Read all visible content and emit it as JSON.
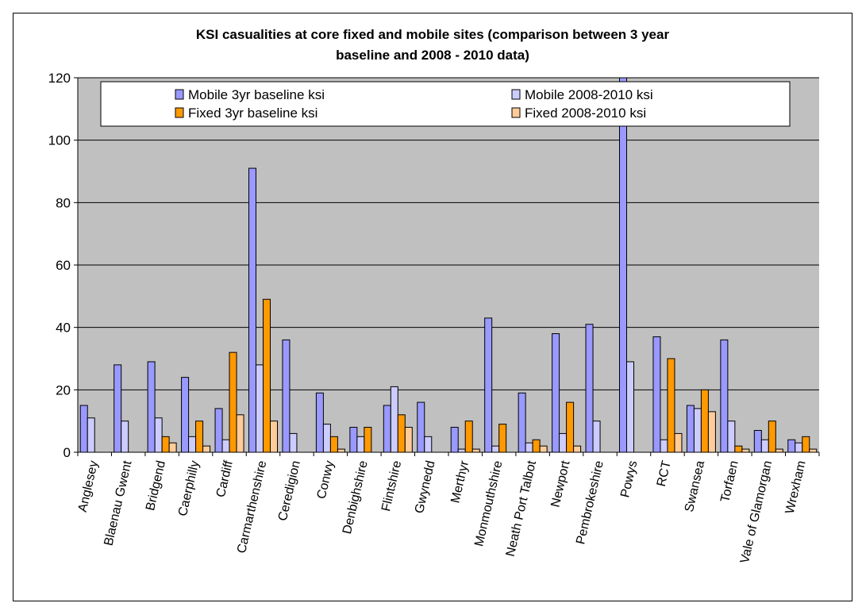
{
  "chart_data": {
    "type": "bar",
    "title_lines": [
      "KSI casualities at core fixed and mobile sites (comparison between 3 year",
      "baseline and 2008 - 2010 data)"
    ],
    "xlabel": "",
    "ylabel": "",
    "ylim": [
      0,
      120
    ],
    "yticks": [
      0,
      20,
      40,
      60,
      80,
      100,
      120
    ],
    "grid": true,
    "legend_position": "top",
    "plot_background": "#c0c0c0",
    "categories": [
      "Anglesey",
      "Blaenau Gwent",
      "Bridgend",
      "Caerphilly",
      "Cardiff",
      "Carmarthenshire",
      "Ceredigion",
      "Conwy",
      "Denbighshire",
      "Flintshire",
      "Gwynedd",
      "Merthyr",
      "Monmouthshire",
      "Neath Port Talbot",
      "Newport",
      "Pembrokeshire",
      "Powys",
      "RCT",
      "Swansea",
      "Torfaen",
      "Vale of Glamorgan",
      "Wrexham"
    ],
    "series": [
      {
        "name": "Mobile 3yr baseline ksi",
        "color": "#9999ff",
        "values": [
          15,
          28,
          29,
          24,
          14,
          91,
          36,
          19,
          8,
          15,
          16,
          8,
          43,
          19,
          38,
          41,
          120,
          37,
          15,
          36,
          7,
          4
        ]
      },
      {
        "name": "Mobile 2008-2010 ksi",
        "color": "#ccccff",
        "values": [
          11,
          10,
          11,
          5,
          4,
          28,
          6,
          9,
          5,
          21,
          5,
          1,
          2,
          3,
          6,
          10,
          29,
          4,
          14,
          10,
          4,
          3
        ]
      },
      {
        "name": "Fixed 3yr baseline ksi",
        "color": "#ff9900",
        "values": [
          0,
          0,
          5,
          10,
          32,
          49,
          0,
          5,
          8,
          12,
          0,
          10,
          9,
          4,
          16,
          0,
          0,
          30,
          20,
          2,
          10,
          5
        ]
      },
      {
        "name": "Fixed 2008-2010 ksi",
        "color": "#ffcc99",
        "values": [
          0,
          0,
          3,
          2,
          12,
          10,
          0,
          1,
          0,
          8,
          0,
          1,
          0,
          2,
          2,
          0,
          0,
          6,
          13,
          1,
          1,
          1
        ]
      }
    ]
  }
}
